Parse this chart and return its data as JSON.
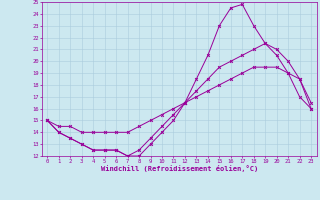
{
  "xlabel": "Windchill (Refroidissement éolien,°C)",
  "xlim": [
    -0.5,
    23.5
  ],
  "ylim": [
    12,
    25
  ],
  "yticks": [
    12,
    13,
    14,
    15,
    16,
    17,
    18,
    19,
    20,
    21,
    22,
    23,
    24,
    25
  ],
  "xticks": [
    0,
    1,
    2,
    3,
    4,
    5,
    6,
    7,
    8,
    9,
    10,
    11,
    12,
    13,
    14,
    15,
    16,
    17,
    18,
    19,
    20,
    21,
    22,
    23
  ],
  "bg_color": "#cce8f0",
  "line_color": "#990099",
  "grid_color": "#aaccdd",
  "curve1_x": [
    0,
    1,
    2,
    3,
    4,
    5,
    6,
    7,
    8,
    9,
    10,
    11,
    12,
    13,
    14,
    15,
    16,
    17,
    18,
    19,
    20,
    21,
    22,
    23
  ],
  "curve1_y": [
    15.0,
    14.0,
    13.5,
    13.0,
    12.5,
    12.5,
    12.5,
    12.0,
    12.0,
    13.0,
    14.0,
    15.0,
    16.5,
    18.5,
    20.5,
    23.0,
    24.5,
    24.8,
    23.0,
    21.5,
    20.5,
    19.0,
    17.0,
    16.0
  ],
  "curve2_x": [
    0,
    1,
    2,
    3,
    4,
    5,
    6,
    7,
    8,
    9,
    10,
    11,
    12,
    13,
    14,
    15,
    16,
    17,
    18,
    19,
    20,
    21,
    22,
    23
  ],
  "curve2_y": [
    15.0,
    14.0,
    13.5,
    13.0,
    12.5,
    12.5,
    12.5,
    12.0,
    12.5,
    13.5,
    14.5,
    15.5,
    16.5,
    17.5,
    18.5,
    19.5,
    20.0,
    20.5,
    21.0,
    21.5,
    21.0,
    20.0,
    18.5,
    16.5
  ],
  "curve3_x": [
    0,
    1,
    2,
    3,
    4,
    5,
    6,
    7,
    8,
    9,
    10,
    11,
    12,
    13,
    14,
    15,
    16,
    17,
    18,
    19,
    20,
    21,
    22,
    23
  ],
  "curve3_y": [
    15.0,
    14.5,
    14.5,
    14.0,
    14.0,
    14.0,
    14.0,
    14.0,
    14.5,
    15.0,
    15.5,
    16.0,
    16.5,
    17.0,
    17.5,
    18.0,
    18.5,
    19.0,
    19.5,
    19.5,
    19.5,
    19.0,
    18.5,
    16.0
  ]
}
